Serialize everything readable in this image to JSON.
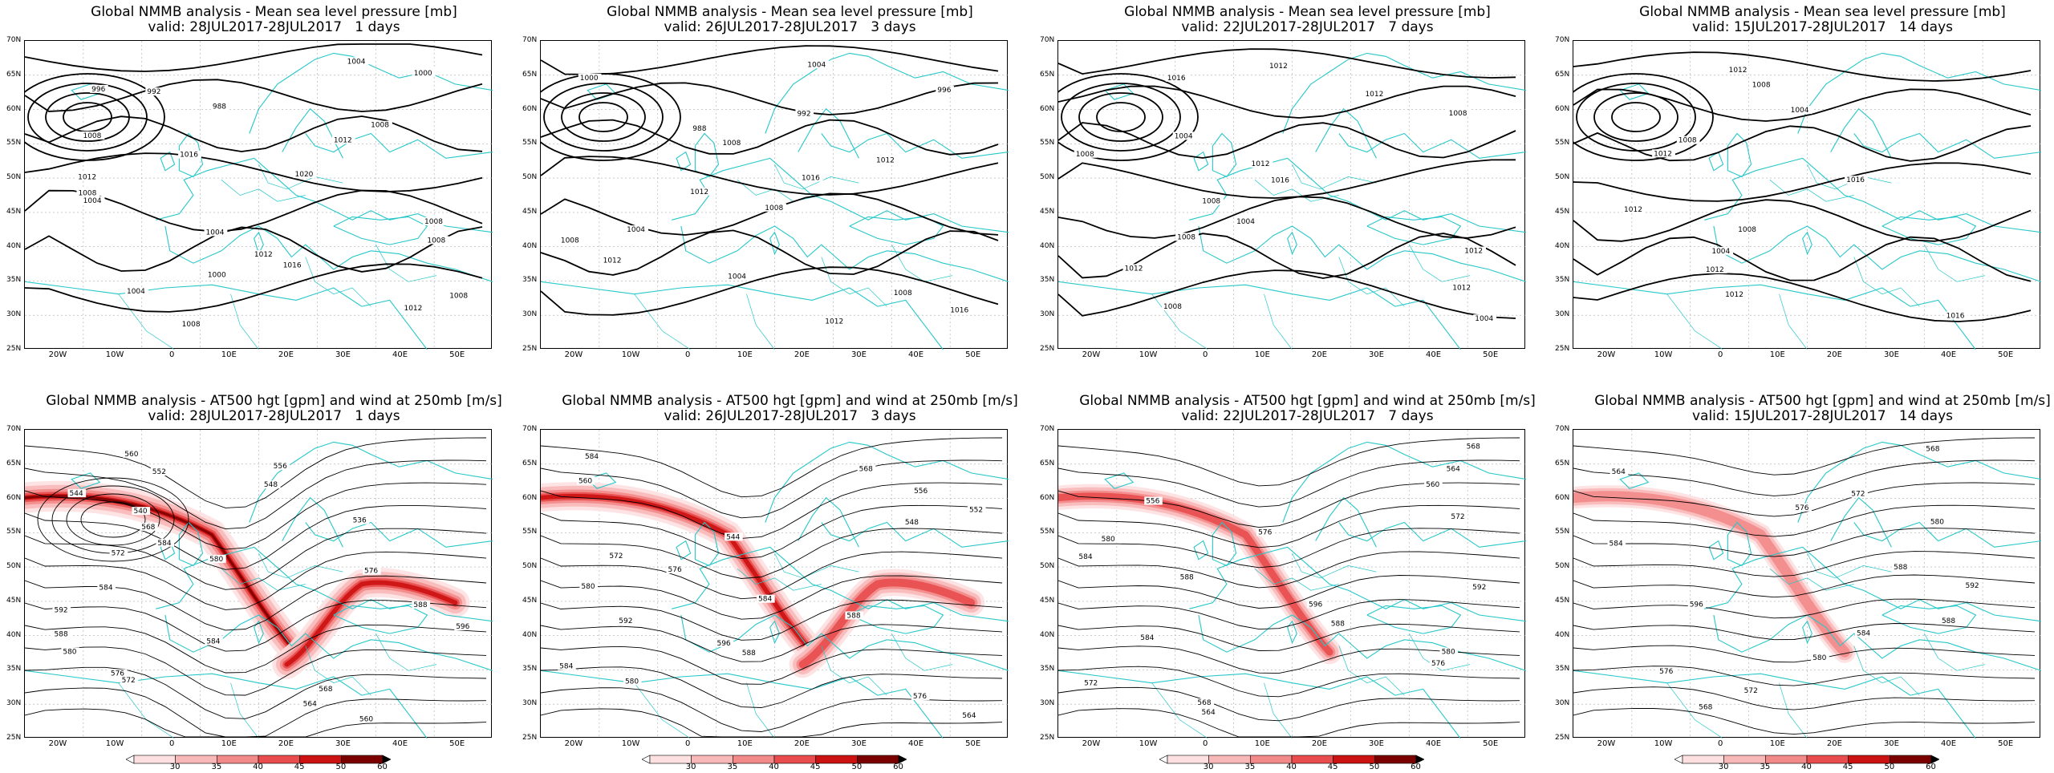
{
  "panels": [
    {
      "id": "p1",
      "row": 0,
      "col": 0,
      "title_line1": "Global NMMB analysis - Mean sea level pressure [mb]",
      "title_line2": "valid: 28JUL2017-28JUL2017   1 days",
      "labels": [
        "1004",
        "1000",
        "996",
        "992",
        "988",
        "1008",
        "1008",
        "1012",
        "1016",
        "1020",
        "1012",
        "1008",
        "1004",
        "1008",
        "1004",
        "1008",
        "1012",
        "1016",
        "1000",
        "1004",
        "1008",
        "1012",
        "1008"
      ]
    },
    {
      "id": "p2",
      "row": 0,
      "col": 1,
      "title_line1": "Global NMMB analysis - Mean sea level pressure [mb]",
      "title_line2": "valid: 26JUL2017-28JUL2017   3 days",
      "labels": [
        "1004",
        "1000",
        "996",
        "992",
        "988",
        "1008",
        "1012",
        "1016",
        "1012",
        "1008",
        "1004",
        "1008",
        "1012",
        "1004",
        "1008",
        "1016",
        "1012"
      ]
    },
    {
      "id": "p3",
      "row": 0,
      "col": 2,
      "title_line1": "Global NMMB analysis - Mean sea level pressure [mb]",
      "title_line2": "valid: 22JUL2017-28JUL2017   7 days",
      "labels": [
        "1012",
        "1016",
        "1012",
        "1008",
        "1004",
        "1008",
        "1012",
        "1016",
        "1008",
        "1004",
        "1008",
        "1012",
        "1012",
        "1012",
        "1008",
        "1004"
      ]
    },
    {
      "id": "p4",
      "row": 0,
      "col": 3,
      "title_line1": "Global NMMB analysis - Mean sea level pressure [mb]",
      "title_line2": "valid: 15JUL2017-28JUL2017   14 days",
      "labels": [
        "1012",
        "1008",
        "1004",
        "1008",
        "1012",
        "1016",
        "1012",
        "1008",
        "1004",
        "1012",
        "1012",
        "1016"
      ]
    },
    {
      "id": "p5",
      "row": 1,
      "col": 0,
      "title_line1": "Global NMMB analysis - AT500 hgt [gpm] and wind at 250mb [m/s]",
      "title_line2": "valid: 28JUL2017-28JUL2017   1 days",
      "labels": [
        "560",
        "556",
        "552",
        "548",
        "544",
        "540",
        "536",
        "568",
        "584",
        "572",
        "580",
        "576",
        "584",
        "588",
        "592",
        "596",
        "588",
        "584",
        "580",
        "576",
        "572",
        "568",
        "564",
        "560"
      ]
    },
    {
      "id": "p6",
      "row": 1,
      "col": 1,
      "title_line1": "Global NMMB analysis - AT500 hgt [gpm] and wind at 250mb [m/s]",
      "title_line2": "valid: 26JUL2017-28JUL2017   3 days",
      "labels": [
        "584",
        "568",
        "560",
        "556",
        "552",
        "548",
        "544",
        "572",
        "576",
        "580",
        "584",
        "588",
        "592",
        "596",
        "588",
        "584",
        "580",
        "576",
        "564"
      ]
    },
    {
      "id": "p7",
      "row": 1,
      "col": 2,
      "title_line1": "Global NMMB analysis - AT500 hgt [gpm] and wind at 250mb [m/s]",
      "title_line2": "valid: 22JUL2017-28JUL2017   7 days",
      "labels": [
        "568",
        "564",
        "560",
        "556",
        "572",
        "576",
        "580",
        "584",
        "588",
        "592",
        "596",
        "588",
        "584",
        "580",
        "576",
        "572",
        "568",
        "564"
      ]
    },
    {
      "id": "p8",
      "row": 1,
      "col": 3,
      "title_line1": "Global NMMB analysis - AT500 hgt [gpm] and wind at 250mb [m/s]",
      "title_line2": "valid: 15JUL2017-28JUL2017   14 days",
      "labels": [
        "568",
        "564",
        "572",
        "576",
        "580",
        "584",
        "588",
        "592",
        "596",
        "588",
        "584",
        "580",
        "576",
        "572",
        "568"
      ]
    }
  ],
  "lat_labels": [
    "70N",
    "65N",
    "60N",
    "55N",
    "50N",
    "45N",
    "40N",
    "35N",
    "30N",
    "25N"
  ],
  "lon_labels": [
    "20W",
    "10W",
    "0",
    "10E",
    "20E",
    "30E",
    "40E",
    "50E"
  ],
  "colorbar": {
    "labels": [
      "30",
      "35",
      "40",
      "45",
      "50",
      "60"
    ],
    "colors": [
      "#ffffff",
      "#fde0e0",
      "#f9b8b8",
      "#f28a8a",
      "#e84c4c",
      "#cc1111",
      "#7a0000",
      "#000000"
    ]
  },
  "colors": {
    "coast": "#27c7c9",
    "contour": "#000000",
    "grid": "#aaaaaa"
  }
}
